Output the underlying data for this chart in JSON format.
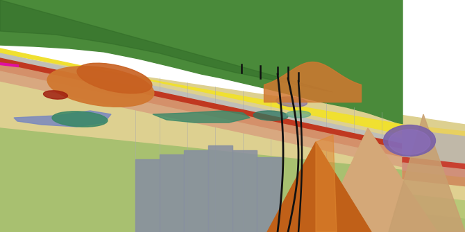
{
  "background_color": "#ffffff",
  "fig_width": 6.7,
  "fig_height": 3.35,
  "dpi": 100,
  "colors": {
    "green_terrain": "#4a8a3a",
    "green_terrain_dark": "#2d6624",
    "yellow_band": "#f0e030",
    "gray_band": "#c0bfb8",
    "red_band": "#c03820",
    "salmon_band": "#d4906a",
    "light_yellow_slab": "#ddd090",
    "light_yellow2": "#e8d878",
    "orange_blob1": "#d07830",
    "orange_blob2": "#c86020",
    "brown_blob": "#8a3010",
    "red_small": "#a02010",
    "blue_body": "#7888c0",
    "teal_body1": "#3a8868",
    "teal_body2": "#2e7860",
    "gray_blocks": "#8890a0",
    "light_green_lower": "#a8c070",
    "light_green_lower2": "#b8cc80",
    "purple_slab": "#7860a8",
    "teal_small": "#60a888",
    "orange_cone_main": "#c06018",
    "orange_cone_light": "#e08830",
    "peach_cone": "#d4a878",
    "peach_cone2": "#c8987060",
    "magenta": "#e010a0",
    "well_color": "#111111",
    "grid_line": "#aaaaaa",
    "white": "#ffffff",
    "right_face_yellow": "#e8d060",
    "right_face_gray": "#c0b8a8",
    "right_face_red": "#c84030",
    "right_face_salmon": "#d0907a",
    "right_face_orange": "#d09060",
    "right_face_lyellow": "#e0d090",
    "right_face_lgreen": "#b8c878"
  }
}
